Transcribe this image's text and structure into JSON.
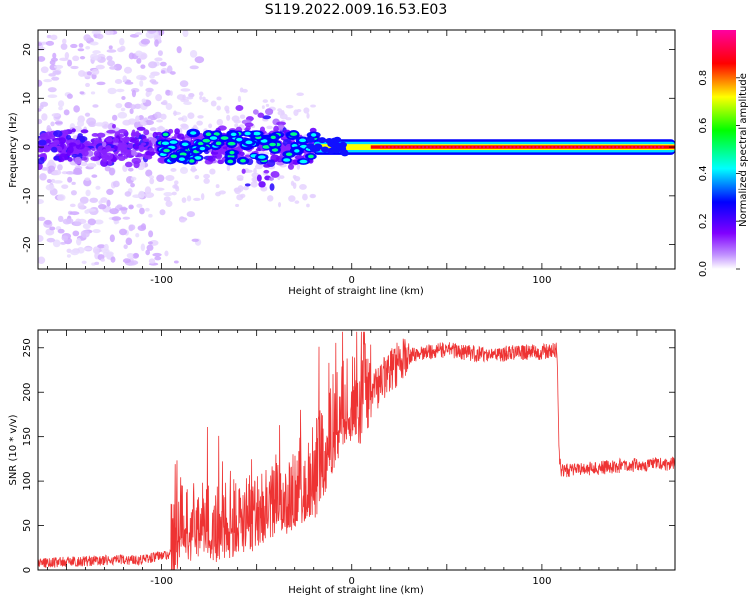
{
  "title": "S119.2022.009.16.53.E03",
  "chart_data": [
    {
      "type": "heatmap",
      "xlabel": "Height of straight line (km)",
      "ylabel": "Frequency (Hz)",
      "xlim": [
        -165,
        170
      ],
      "ylim": [
        -25,
        24
      ],
      "xticks": [
        -100,
        0,
        100
      ],
      "yticks": [
        -20,
        -10,
        0,
        10,
        20
      ],
      "colorbar": {
        "label": "Normalized spectral amplitude",
        "range": [
          0,
          1
        ],
        "ticks": [
          "0.0",
          "0.2",
          "0.4",
          "0.6",
          "0.8"
        ],
        "colors": [
          "#ffffff",
          "#8000ff",
          "#0000ff",
          "#00ffff",
          "#00ff00",
          "#ffff00",
          "#ff0000",
          "#ff00a0"
        ]
      },
      "features": [
        {
          "x_range": [
            -165,
            -100
          ],
          "freq_band": [
            -24,
            24
          ],
          "amplitude": 0.1
        },
        {
          "x_range": [
            -165,
            -20
          ],
          "freq_band": [
            -4,
            4
          ],
          "amplitude": 0.3
        },
        {
          "x_range": [
            -20,
            170
          ],
          "freq_band": [
            -1,
            1
          ],
          "amplitude": 0.85
        }
      ]
    },
    {
      "type": "line",
      "xlabel": "Height of straight line (km)",
      "ylabel": "SNR (10 * v/v)",
      "xlim": [
        -165,
        170
      ],
      "ylim": [
        0,
        270
      ],
      "xticks": [
        -100,
        0,
        100
      ],
      "yticks": [
        0,
        50,
        100,
        150,
        200,
        250
      ],
      "series": [
        {
          "color": "#ee3333",
          "x": [
            -165,
            -140,
            -110,
            -95,
            -90,
            -80,
            -70,
            -60,
            -50,
            -40,
            -30,
            -20,
            -15,
            -10,
            -5,
            0,
            10,
            20,
            30,
            40,
            50,
            60,
            70,
            80,
            90,
            100,
            108,
            109,
            110,
            120,
            130,
            140,
            150,
            160,
            170
          ],
          "y": [
            8,
            10,
            12,
            18,
            40,
            45,
            40,
            50,
            55,
            65,
            80,
            95,
            120,
            150,
            170,
            175,
            195,
            225,
            240,
            245,
            248,
            245,
            242,
            243,
            245,
            245,
            248,
            130,
            112,
            113,
            115,
            117,
            118,
            119,
            120
          ]
        }
      ]
    }
  ]
}
